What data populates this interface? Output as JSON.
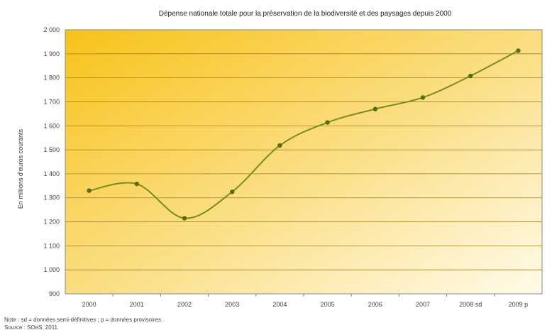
{
  "chart_data": {
    "type": "line",
    "title": "Dépense nationale totale pour la préservation de la biodiversité et des paysages depuis 2000",
    "xlabel": "",
    "ylabel": "En millions d'euros courants",
    "categories": [
      "2000",
      "2001",
      "2002",
      "2003",
      "2004",
      "2005",
      "2006",
      "2007",
      "2008 sd",
      "2009 p"
    ],
    "series": [
      {
        "values": [
          1330,
          1358,
          1215,
          1325,
          1518,
          1614,
          1670,
          1718,
          1808,
          1913
        ]
      }
    ],
    "ylim": [
      900,
      2000
    ],
    "yticks": [
      "900",
      "1 000",
      "1 100",
      "1 200",
      "1 300",
      "1 400",
      "1 500",
      "1 600",
      "1 700",
      "1 800",
      "1 900",
      "2 000"
    ],
    "grid": true,
    "legend": "none"
  },
  "notes": {
    "line1": "Note : sd = données semi-définitives ; p = données provisoires.",
    "line2": "Source : SOeS, 2011."
  },
  "colors": {
    "bg_top_left": "#f8c21a",
    "bg_mid": "#fbe08a",
    "bg_bottom_right": "#fffbea",
    "line": "#7a8c1e",
    "marker": "#5a6b14",
    "grid": "#a0802a",
    "axis": "#888888"
  }
}
